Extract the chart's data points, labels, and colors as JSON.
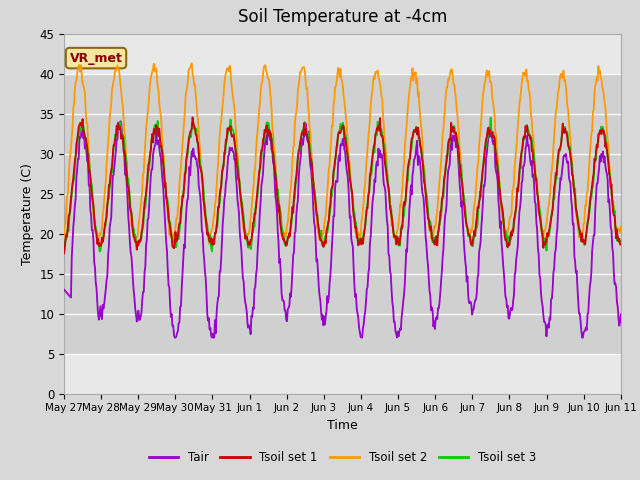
{
  "title": "Soil Temperature at -4cm",
  "xlabel": "Time",
  "ylabel": "Temperature (C)",
  "ylim": [
    0,
    45
  ],
  "yticks": [
    0,
    5,
    10,
    15,
    20,
    25,
    30,
    35,
    40,
    45
  ],
  "date_labels": [
    "May 27",
    "May 28",
    "May 29",
    "May 30",
    "May 31",
    "Jun 1",
    "Jun 2",
    "Jun 3",
    "Jun 4",
    "Jun 5",
    "Jun 6",
    "Jun 7",
    "Jun 8",
    "Jun 9",
    "Jun 10",
    "Jun 11"
  ],
  "colors": {
    "Tair": "#9900cc",
    "Tsoil1": "#cc0000",
    "Tsoil2": "#ff9900",
    "Tsoil3": "#00cc00"
  },
  "legend_labels": [
    "Tair",
    "Tsoil set 1",
    "Tsoil set 2",
    "Tsoil set 3"
  ],
  "annotation_text": "VR_met",
  "outer_bg": "#d8d8d8",
  "inner_bg": "#e8e8e8",
  "band_bg": "#d0d0d0",
  "grid_color": "#ffffff",
  "title_fontsize": 12,
  "n_days": 15
}
